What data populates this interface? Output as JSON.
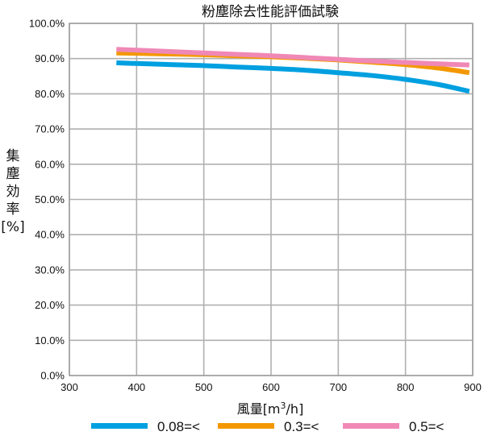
{
  "chart_data": {
    "type": "line",
    "title": "粉塵除去性能評価試験",
    "xlabel": "風量[m³/h]",
    "xlabel_main": "風量[m",
    "xlabel_sup": "3",
    "xlabel_tail": "/h]",
    "ylabel_chars": [
      "集",
      "塵",
      "効",
      "率",
      "[%]"
    ],
    "x_ticks": [
      "300",
      "400",
      "500",
      "600",
      "700",
      "800",
      "900"
    ],
    "y_ticks": [
      "0.0%",
      "10.0%",
      "20.0%",
      "30.0%",
      "40.0%",
      "50.0%",
      "60.0%",
      "70.0%",
      "80.0%",
      "90.0%",
      "100.0%"
    ],
    "xlim": [
      300,
      900
    ],
    "ylim": [
      0,
      100
    ],
    "grid": true,
    "legend_position": "bottom",
    "series": [
      {
        "name": "0.08=<",
        "color": "#00a0e0",
        "x": [
          370,
          400,
          450,
          500,
          550,
          600,
          650,
          700,
          750,
          800,
          850,
          895
        ],
        "values": [
          88.8,
          88.6,
          88.3,
          88.0,
          87.6,
          87.2,
          86.7,
          86.0,
          85.2,
          84.1,
          82.6,
          80.7
        ]
      },
      {
        "name": "0.3=<",
        "color": "#f39800",
        "x": [
          370,
          400,
          450,
          500,
          550,
          600,
          650,
          700,
          750,
          800,
          850,
          895
        ],
        "values": [
          91.6,
          91.5,
          91.3,
          91.1,
          90.8,
          90.5,
          90.1,
          89.6,
          89.0,
          88.3,
          87.3,
          86.0
        ]
      },
      {
        "name": "0.5=<",
        "color": "#f088b6",
        "x": [
          370,
          400,
          450,
          500,
          550,
          600,
          650,
          700,
          750,
          800,
          850,
          895
        ],
        "values": [
          92.6,
          92.4,
          92.0,
          91.6,
          91.2,
          90.8,
          90.3,
          89.8,
          89.3,
          88.9,
          88.5,
          88.2
        ]
      }
    ]
  }
}
